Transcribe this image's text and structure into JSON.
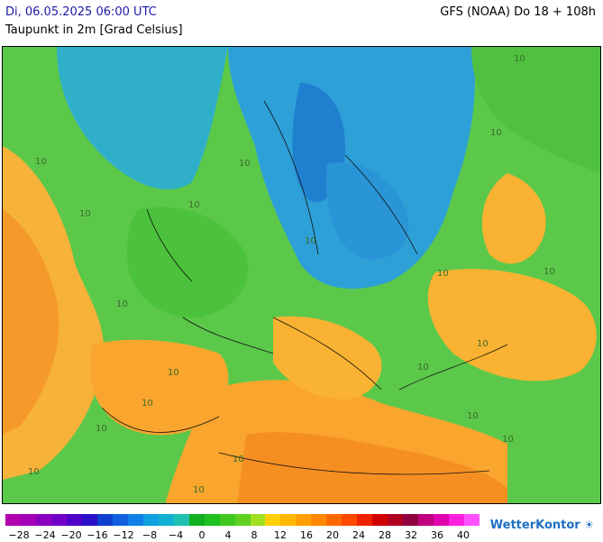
{
  "header": {
    "datetime": "Di, 06.05.2025 06:00 UTC",
    "variable": "Taupunkt in 2m [Grad Celsius]",
    "model_run": "GFS (NOAA) Do 18 + 108h"
  },
  "map": {
    "contour_labels": [
      "10",
      "10",
      "10",
      "10",
      "10",
      "10",
      "10",
      "10",
      "10",
      "10",
      "10",
      "10",
      "10",
      "10",
      "10",
      "10",
      "10",
      "10",
      "10",
      "10"
    ]
  },
  "legend": {
    "colors": [
      "#b000b0",
      "#a300b8",
      "#8a00c0",
      "#7000c8",
      "#5000c8",
      "#2a10c8",
      "#1040d0",
      "#1060e0",
      "#1080e8",
      "#10a0e0",
      "#10b0d0",
      "#20c0b0",
      "#10b020",
      "#20c020",
      "#40c820",
      "#60d020",
      "#a0e020",
      "#ffd000",
      "#ffb800",
      "#ffa000",
      "#ff8800",
      "#ff6800",
      "#ff4800",
      "#f02000",
      "#d00000",
      "#b00020",
      "#900040",
      "#c00080",
      "#e000b0",
      "#ff20e0",
      "#ff50ff"
    ],
    "ticks": [
      "−28",
      "−24",
      "−20",
      "−16",
      "−12",
      "−8",
      "−4",
      "0",
      "4",
      "8",
      "12",
      "16",
      "20",
      "24",
      "28",
      "32",
      "36",
      "40"
    ]
  },
  "brand": {
    "name": "WetterKontor",
    "icon": "sun-cloud-icon"
  }
}
